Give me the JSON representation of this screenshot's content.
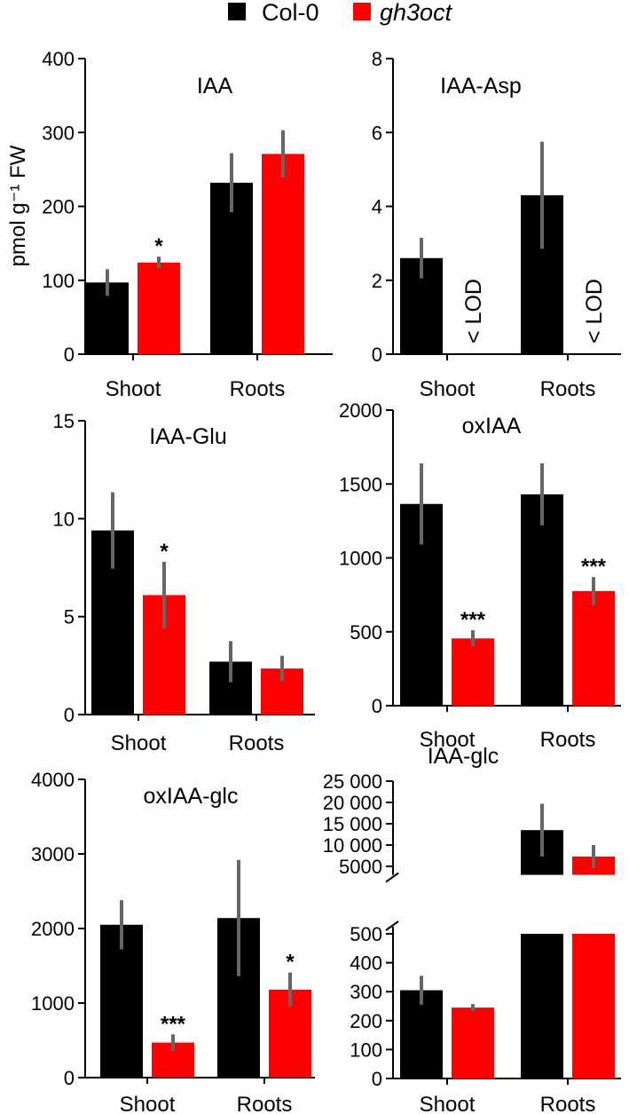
{
  "legend": {
    "items": [
      {
        "name": "Col-0",
        "color": "#000000",
        "italic": false
      },
      {
        "name": "gh3oct",
        "color": "#ff0000",
        "italic": true
      }
    ]
  },
  "ylabel_main": "pmol g⁻¹ FW",
  "colors": {
    "col0": "#000000",
    "gh3oct": "#ff0000",
    "errorbar": "#666666"
  },
  "chart_data": [
    {
      "type": "bar",
      "title": "IAA",
      "categories": [
        "Shoot",
        "Roots"
      ],
      "ylim": [
        0,
        400
      ],
      "yticks": [
        "0",
        "100",
        "200",
        "300",
        "400"
      ],
      "series": [
        {
          "name": "Col-0",
          "values": [
            97,
            232
          ],
          "err": [
            18,
            40
          ]
        },
        {
          "name": "gh3oct",
          "values": [
            124,
            271
          ],
          "err": [
            8,
            32
          ]
        }
      ],
      "annotations": [
        {
          "category": 0,
          "series": 1,
          "text": "*"
        }
      ]
    },
    {
      "type": "bar",
      "title": "IAA-Asp",
      "categories": [
        "Shoot",
        "Roots"
      ],
      "ylim": [
        0,
        8
      ],
      "yticks": [
        "0",
        "2",
        "4",
        "6",
        "8"
      ],
      "series": [
        {
          "name": "Col-0",
          "values": [
            2.6,
            4.3
          ],
          "err": [
            0.55,
            1.45
          ]
        },
        {
          "name": "gh3oct",
          "values": [
            null,
            null
          ],
          "err": [
            null,
            null
          ]
        }
      ],
      "annotations": [
        {
          "category": 0,
          "series": 1,
          "text": "< LOD"
        },
        {
          "category": 1,
          "series": 1,
          "text": "< LOD"
        }
      ]
    },
    {
      "type": "bar",
      "title": "IAA-Glu",
      "categories": [
        "Shoot",
        "Roots"
      ],
      "ylim": [
        0,
        15
      ],
      "yticks": [
        "0",
        "5",
        "10",
        "15"
      ],
      "series": [
        {
          "name": "Col-0",
          "values": [
            9.4,
            2.7
          ],
          "err": [
            1.95,
            1.05
          ]
        },
        {
          "name": "gh3oct",
          "values": [
            6.1,
            2.35
          ],
          "err": [
            1.7,
            0.65
          ]
        }
      ],
      "annotations": [
        {
          "category": 0,
          "series": 1,
          "text": "*"
        }
      ]
    },
    {
      "type": "bar",
      "title": "oxIAA",
      "categories": [
        "Shoot",
        "Roots"
      ],
      "ylim": [
        0,
        2000
      ],
      "yticks": [
        "0",
        "500",
        "1000",
        "1500",
        "2000"
      ],
      "series": [
        {
          "name": "Col-0",
          "values": [
            1365,
            1430
          ],
          "err": [
            275,
            210
          ]
        },
        {
          "name": "gh3oct",
          "values": [
            455,
            775
          ],
          "err": [
            55,
            95
          ]
        }
      ],
      "annotations": [
        {
          "category": 0,
          "series": 1,
          "text": "***"
        },
        {
          "category": 1,
          "series": 1,
          "text": "***"
        }
      ]
    },
    {
      "type": "bar",
      "title": "oxIAA-glc",
      "categories": [
        "Shoot",
        "Roots"
      ],
      "ylim": [
        0,
        4000
      ],
      "yticks": [
        "0",
        "1000",
        "2000",
        "3000",
        "4000"
      ],
      "series": [
        {
          "name": "Col-0",
          "values": [
            2050,
            2140
          ],
          "err": [
            330,
            780
          ]
        },
        {
          "name": "gh3oct",
          "values": [
            470,
            1180
          ],
          "err": [
            110,
            230
          ]
        }
      ],
      "annotations": [
        {
          "category": 0,
          "series": 1,
          "text": "***"
        },
        {
          "category": 1,
          "series": 1,
          "text": "*"
        }
      ]
    },
    {
      "type": "bar",
      "title": "IAA-glc",
      "axis_break": true,
      "categories": [
        "Shoot",
        "Roots"
      ],
      "ylim_lower": [
        0,
        500
      ],
      "yticks_lower": [
        "0",
        "100",
        "200",
        "300",
        "400",
        "500"
      ],
      "ylim_upper": [
        3000,
        25000
      ],
      "yticks_upper": [
        "5000",
        "10 000",
        "15 000",
        "20 000",
        "25 000"
      ],
      "series": [
        {
          "name": "Col-0",
          "values": [
            305,
            13500
          ],
          "err": [
            50,
            6200
          ]
        },
        {
          "name": "gh3oct",
          "values": [
            245,
            7300
          ],
          "err": [
            12,
            2700
          ]
        }
      ],
      "annotations": []
    }
  ]
}
